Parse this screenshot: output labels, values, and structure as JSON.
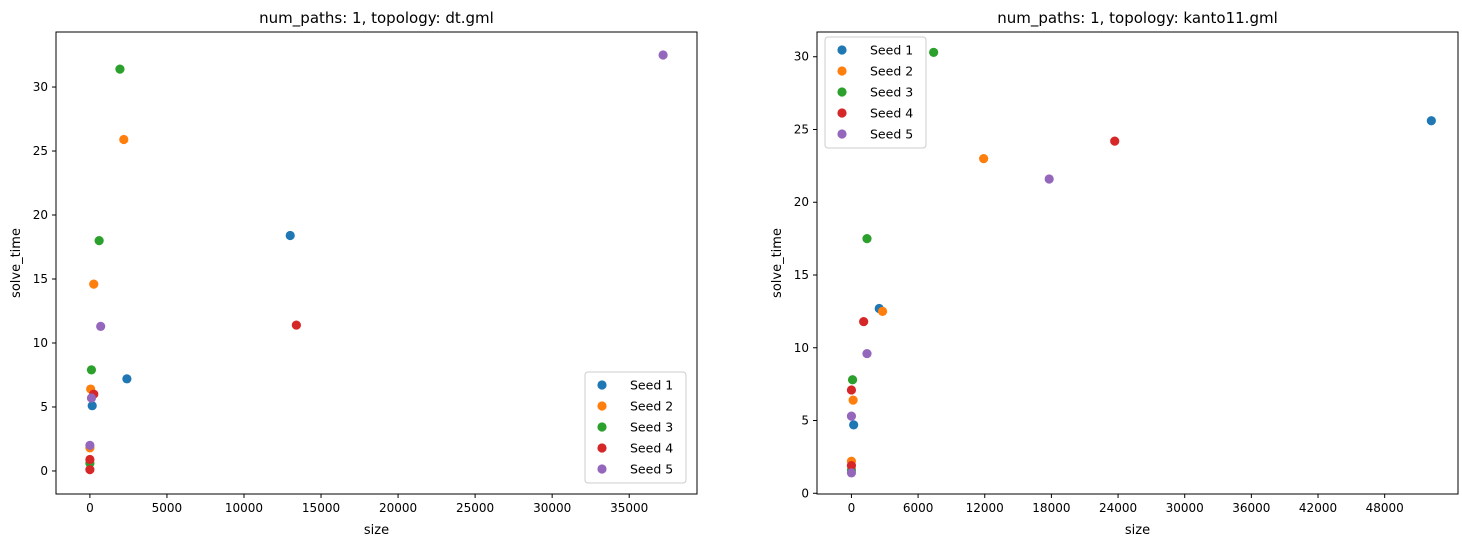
{
  "chart_data": [
    {
      "type": "scatter",
      "title": "num_paths: 1, topology: dt.gml",
      "xlabel": "size",
      "ylabel": "solve_time",
      "xlim": [
        -2200,
        39400
      ],
      "ylim": [
        -1.8,
        34.3
      ],
      "xticks": [
        0,
        5000,
        10000,
        15000,
        20000,
        25000,
        30000,
        35000
      ],
      "yticks": [
        0,
        5,
        10,
        15,
        20,
        25,
        30
      ],
      "grid": false,
      "legend_position": "lower right",
      "series": [
        {
          "name": "Seed 1",
          "color": "#1f77b4",
          "points": [
            [
              150,
              5.1
            ],
            [
              2400,
              7.2
            ],
            [
              13000,
              18.4
            ]
          ]
        },
        {
          "name": "Seed 2",
          "color": "#ff7f0e",
          "points": [
            [
              0,
              1.8
            ],
            [
              50,
              6.4
            ],
            [
              250,
              14.6
            ],
            [
              2200,
              25.9
            ]
          ]
        },
        {
          "name": "Seed 3",
          "color": "#2ca02c",
          "points": [
            [
              0,
              0.6
            ],
            [
              100,
              7.9
            ],
            [
              600,
              18.0
            ],
            [
              1950,
              31.4
            ]
          ]
        },
        {
          "name": "Seed 4",
          "color": "#d62728",
          "points": [
            [
              0,
              0.1
            ],
            [
              0,
              0.9
            ],
            [
              250,
              6.0
            ],
            [
              13400,
              11.4
            ]
          ]
        },
        {
          "name": "Seed 5",
          "color": "#9467bd",
          "points": [
            [
              0,
              2.0
            ],
            [
              100,
              5.7
            ],
            [
              700,
              11.3
            ],
            [
              37200,
              32.5
            ]
          ]
        }
      ]
    },
    {
      "type": "scatter",
      "title": "num_paths: 1, topology: kanto11.gml",
      "xlabel": "size",
      "ylabel": "solve_time",
      "xlim": [
        -3100,
        54600
      ],
      "ylim": [
        -0.05,
        31.7
      ],
      "xticks": [
        0,
        6000,
        12000,
        18000,
        24000,
        30000,
        36000,
        42000,
        48000
      ],
      "yticks": [
        0,
        5,
        10,
        15,
        20,
        25,
        30
      ],
      "grid": false,
      "legend_position": "upper left",
      "series": [
        {
          "name": "Seed 1",
          "color": "#1f77b4",
          "points": [
            [
              200,
              4.7
            ],
            [
              2500,
              12.7
            ],
            [
              52200,
              25.6
            ]
          ]
        },
        {
          "name": "Seed 2",
          "color": "#ff7f0e",
          "points": [
            [
              0,
              2.2
            ],
            [
              150,
              6.4
            ],
            [
              2800,
              12.5
            ],
            [
              11900,
              23.0
            ]
          ]
        },
        {
          "name": "Seed 3",
          "color": "#2ca02c",
          "points": [
            [
              0,
              1.6
            ],
            [
              100,
              7.8
            ],
            [
              1400,
              17.5
            ],
            [
              7400,
              30.3
            ]
          ]
        },
        {
          "name": "Seed 4",
          "color": "#d62728",
          "points": [
            [
              0,
              1.9
            ],
            [
              0,
              7.1
            ],
            [
              1100,
              11.8
            ],
            [
              23700,
              24.2
            ]
          ]
        },
        {
          "name": "Seed 5",
          "color": "#9467bd",
          "points": [
            [
              0,
              1.4
            ],
            [
              0,
              5.3
            ],
            [
              1400,
              9.6
            ],
            [
              17800,
              21.6
            ]
          ]
        }
      ]
    }
  ]
}
